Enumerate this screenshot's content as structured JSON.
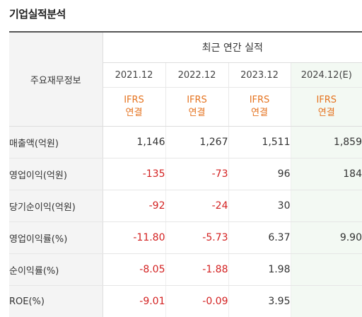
{
  "title": "기업실적분석",
  "header": {
    "row_label": "주요재무정보",
    "group_label": "최근 연간 실적",
    "years": [
      "2021.12",
      "2022.12",
      "2023.12",
      "2024.12(E)"
    ],
    "basis": [
      {
        "std": "IFRS",
        "type": "연결"
      },
      {
        "std": "IFRS",
        "type": "연결"
      },
      {
        "std": "IFRS",
        "type": "연결"
      },
      {
        "std": "IFRS",
        "type": "연결"
      }
    ]
  },
  "rows": [
    {
      "label": "매출액(억원)",
      "values": [
        "1,146",
        "1,267",
        "1,511",
        "1,859"
      ]
    },
    {
      "label": "영업이익(억원)",
      "values": [
        "-135",
        "-73",
        "96",
        "184"
      ]
    },
    {
      "label": "당기순이익(억원)",
      "values": [
        "-92",
        "-24",
        "30",
        ""
      ]
    },
    {
      "label": "영업이익률(%)",
      "values": [
        "-11.80",
        "-5.73",
        "6.37",
        "9.90"
      ]
    },
    {
      "label": "순이익률(%)",
      "values": [
        "-8.05",
        "-1.88",
        "1.98",
        ""
      ]
    },
    {
      "label": "ROE(%)",
      "values": [
        "-9.01",
        "-0.09",
        "3.95",
        ""
      ]
    }
  ],
  "colors": {
    "negative": "#d32121",
    "basis": "#e5731f",
    "estimate_bg": "#f3f9f3"
  }
}
